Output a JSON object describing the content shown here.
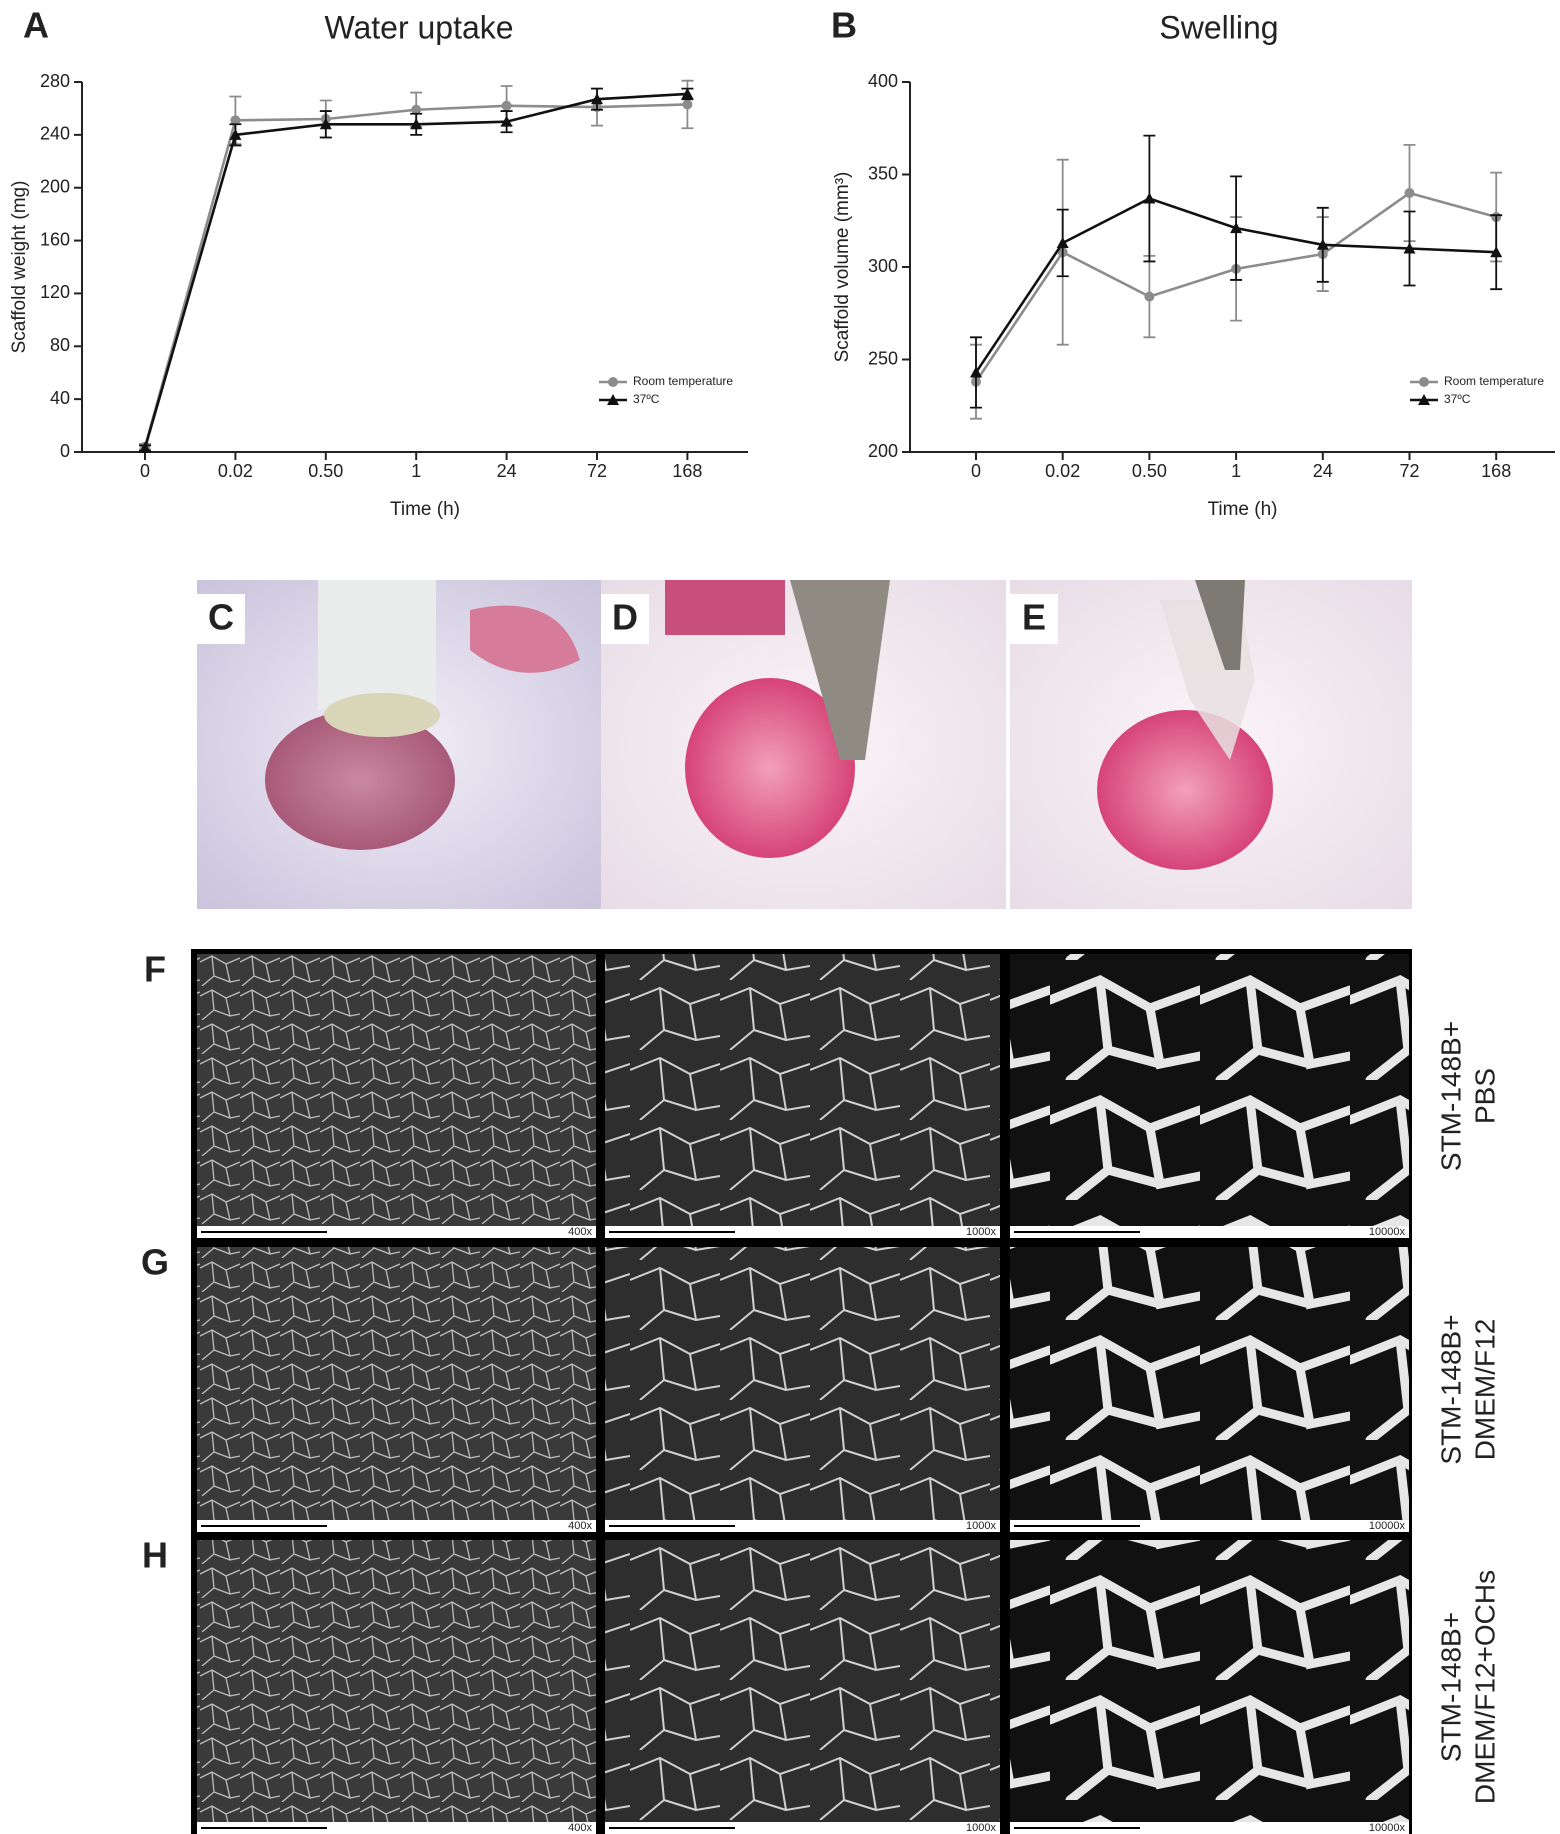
{
  "chart_data": [
    {
      "type": "line",
      "panel": "A",
      "title": "Water uptake",
      "x_label": "Time (h)",
      "y_label": "Scaffold weight (mg)",
      "categories": [
        "0",
        "0.02",
        "0.50",
        "1",
        "24",
        "72",
        "168"
      ],
      "ylim": [
        0,
        280
      ],
      "yticks": [
        0,
        40,
        80,
        120,
        160,
        200,
        240,
        280
      ],
      "series": [
        {
          "name": "Room temperature",
          "color": "#8c8c8c",
          "marker": "circle",
          "values": [
            4,
            251,
            252,
            259,
            262,
            261,
            263
          ],
          "errors": [
            2,
            18,
            14,
            13,
            15,
            14,
            18
          ]
        },
        {
          "name": "37ºC",
          "color": "#111111",
          "marker": "triangle",
          "values": [
            3,
            240,
            248,
            248,
            250,
            267,
            271
          ],
          "errors": [
            2,
            8,
            10,
            8,
            8,
            8,
            4
          ]
        }
      ]
    },
    {
      "type": "line",
      "panel": "B",
      "title": "Swelling",
      "x_label": "Time (h)",
      "y_label": "Scaffold volume (mm³)",
      "categories": [
        "0",
        "0.02",
        "0.50",
        "1",
        "24",
        "72",
        "168"
      ],
      "ylim": [
        200,
        400
      ],
      "yticks": [
        200,
        250,
        300,
        350,
        400
      ],
      "series": [
        {
          "name": "Room temperature",
          "color": "#8c8c8c",
          "marker": "circle",
          "values": [
            238,
            308,
            284,
            299,
            307,
            340,
            327
          ],
          "errors": [
            20,
            50,
            22,
            28,
            20,
            26,
            24
          ]
        },
        {
          "name": "37ºC",
          "color": "#111111",
          "marker": "triangle",
          "values": [
            243,
            313,
            337,
            321,
            312,
            310,
            308
          ],
          "errors": [
            19,
            18,
            34,
            28,
            20,
            20,
            20
          ]
        }
      ]
    }
  ],
  "photos": [
    "C",
    "D",
    "E"
  ],
  "sem": {
    "magnifications": [
      "400x",
      "1000x",
      "10000x"
    ],
    "rows": [
      {
        "panel": "F",
        "condition": [
          "STM-148B+",
          "PBS"
        ]
      },
      {
        "panel": "G",
        "condition": [
          "STM-148B+",
          "DMEM/F12"
        ]
      },
      {
        "panel": "H",
        "condition": [
          "STM-148B+",
          "DMEM/F12+OCHs"
        ]
      }
    ]
  }
}
